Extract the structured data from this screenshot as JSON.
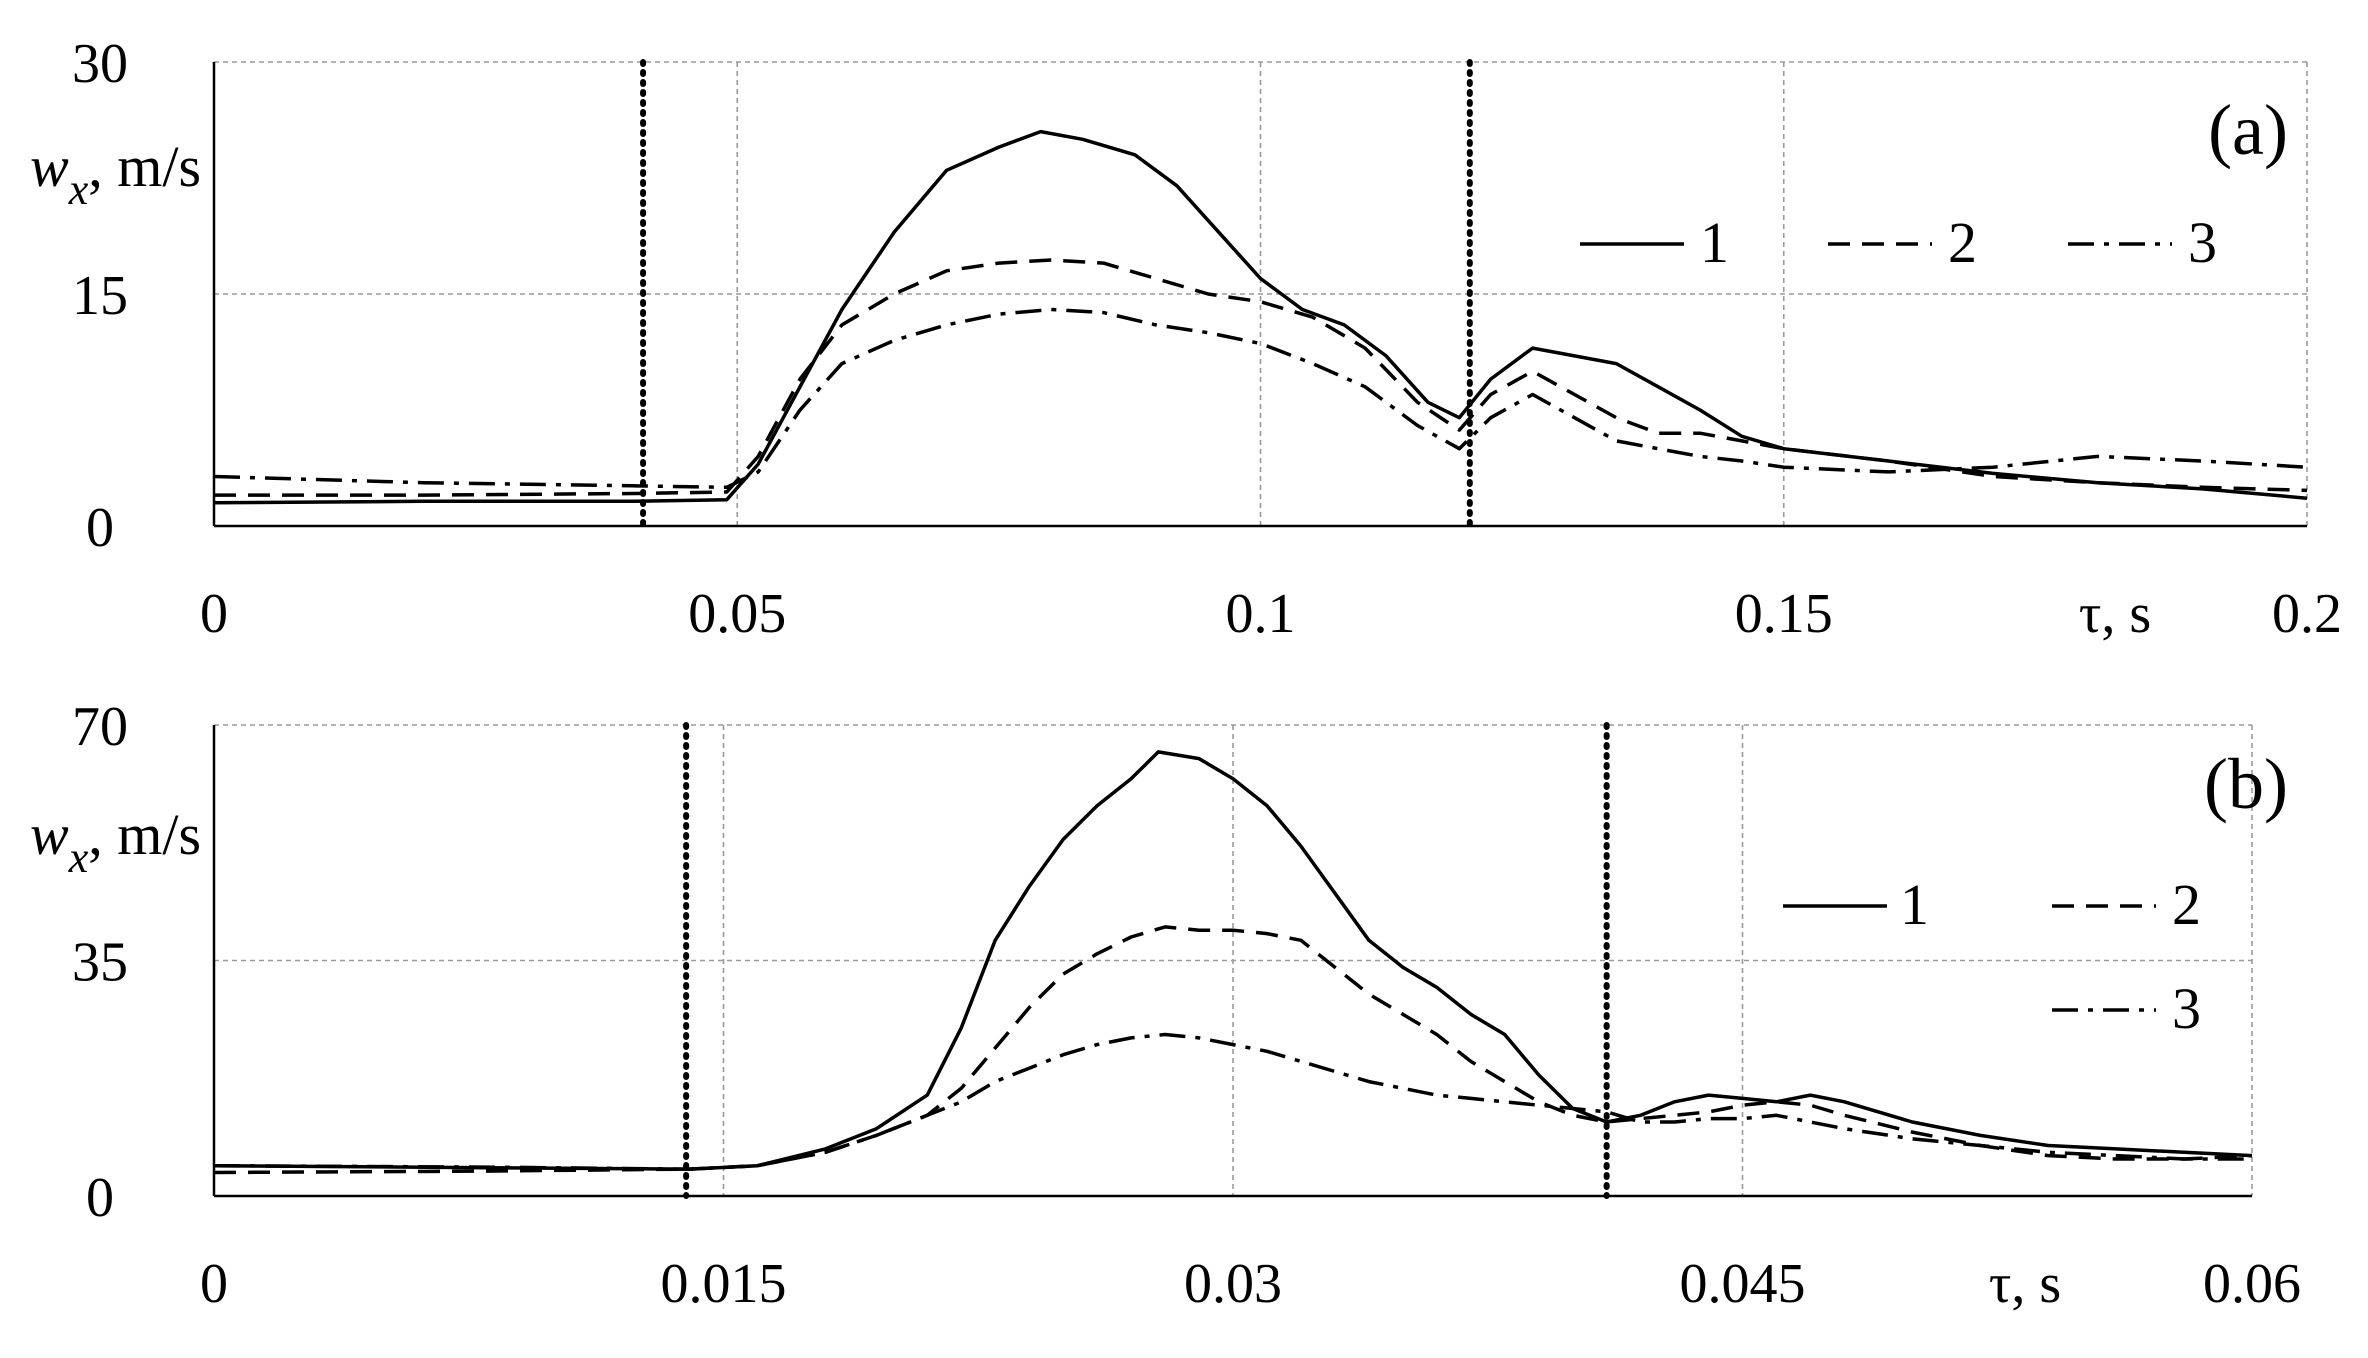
{
  "chart_data": [
    {
      "type": "line",
      "panel_label": "(a)",
      "ylabel_main": "w",
      "ylabel_sub": "x",
      "ylabel_rest": ", m/s",
      "xlabel": "τ, s",
      "xlim": [
        0,
        0.2
      ],
      "ylim": [
        0,
        30
      ],
      "x_ticks": [
        0,
        0.05,
        0.1,
        0.15,
        0.2
      ],
      "x_tick_labels": [
        "0",
        "0.05",
        "0.1",
        "0.15",
        "0.2"
      ],
      "y_ticks": [
        0,
        15,
        30
      ],
      "y_tick_labels": [
        "0",
        "15",
        "30"
      ],
      "grid": true,
      "legend_placement": "top-right",
      "vlines": [
        0.041,
        0.12
      ],
      "series": [
        {
          "name": "1",
          "style": "solid",
          "x": [
            0,
            0.02,
            0.04,
            0.049,
            0.052,
            0.056,
            0.06,
            0.065,
            0.07,
            0.075,
            0.079,
            0.083,
            0.088,
            0.092,
            0.096,
            0.1,
            0.104,
            0.108,
            0.112,
            0.116,
            0.119,
            0.122,
            0.126,
            0.13,
            0.134,
            0.138,
            0.142,
            0.146,
            0.15,
            0.16,
            0.17,
            0.18,
            0.19,
            0.2
          ],
          "y": [
            1.5,
            1.6,
            1.6,
            1.7,
            4,
            9,
            14,
            19,
            23,
            24.5,
            25.5,
            25,
            24,
            22,
            19,
            16,
            14,
            13,
            11,
            8,
            7,
            9.5,
            11.5,
            11,
            10.5,
            9,
            7.5,
            5.8,
            5,
            4.2,
            3.4,
            2.8,
            2.4,
            1.8
          ]
        },
        {
          "name": "2",
          "style": "dashed",
          "x": [
            0,
            0.02,
            0.04,
            0.049,
            0.052,
            0.056,
            0.06,
            0.065,
            0.07,
            0.075,
            0.08,
            0.085,
            0.09,
            0.095,
            0.1,
            0.105,
            0.11,
            0.115,
            0.119,
            0.122,
            0.126,
            0.13,
            0.134,
            0.138,
            0.142,
            0.146,
            0.15,
            0.16,
            0.17,
            0.18,
            0.19,
            0.2
          ],
          "y": [
            2,
            2,
            2.1,
            2.2,
            4.5,
            9.5,
            13,
            15,
            16.5,
            17,
            17.2,
            17,
            16,
            15,
            14.5,
            13.5,
            11.5,
            8,
            6.2,
            8.5,
            10,
            8.5,
            7,
            6,
            6,
            5.5,
            5,
            4.2,
            3.2,
            2.8,
            2.5,
            2.3
          ]
        },
        {
          "name": "3",
          "style": "dashdot",
          "x": [
            0,
            0.02,
            0.04,
            0.049,
            0.052,
            0.056,
            0.06,
            0.065,
            0.07,
            0.075,
            0.08,
            0.085,
            0.09,
            0.095,
            0.1,
            0.105,
            0.11,
            0.115,
            0.119,
            0.122,
            0.126,
            0.13,
            0.134,
            0.138,
            0.142,
            0.146,
            0.15,
            0.16,
            0.17,
            0.18,
            0.19,
            0.2
          ],
          "y": [
            3.2,
            2.8,
            2.6,
            2.5,
            3.5,
            7.5,
            10.5,
            12,
            13,
            13.7,
            14,
            13.8,
            13,
            12.5,
            11.8,
            10.5,
            9,
            6.5,
            5,
            7,
            8.5,
            7,
            5.5,
            5,
            4.5,
            4.2,
            3.8,
            3.5,
            3.8,
            4.5,
            4.2,
            3.8
          ]
        }
      ]
    },
    {
      "type": "line",
      "panel_label": "(b)",
      "ylabel_main": "w",
      "ylabel_sub": "x",
      "ylabel_rest": ", m/s",
      "xlabel": "τ, s",
      "xlim": [
        0,
        0.06
      ],
      "ylim": [
        0,
        70
      ],
      "x_ticks": [
        0,
        0.015,
        0.03,
        0.045,
        0.06
      ],
      "x_tick_labels": [
        "0",
        "0.015",
        "0.03",
        "0.045",
        "0.06"
      ],
      "y_ticks": [
        0,
        35,
        70
      ],
      "y_tick_labels": [
        "0",
        "35",
        "70"
      ],
      "grid": true,
      "legend_placement": "right",
      "vlines": [
        0.0139,
        0.041
      ],
      "series": [
        {
          "name": "1",
          "style": "solid",
          "x": [
            0,
            0.008,
            0.014,
            0.016,
            0.018,
            0.0195,
            0.021,
            0.022,
            0.023,
            0.024,
            0.025,
            0.026,
            0.027,
            0.0278,
            0.029,
            0.03,
            0.031,
            0.032,
            0.033,
            0.034,
            0.035,
            0.036,
            0.037,
            0.038,
            0.039,
            0.04,
            0.041,
            0.042,
            0.043,
            0.044,
            0.045,
            0.046,
            0.047,
            0.048,
            0.05,
            0.052,
            0.054,
            0.056,
            0.058,
            0.06
          ],
          "y": [
            4.5,
            4.2,
            4,
            4.5,
            7,
            10,
            15,
            25,
            38,
            46,
            53,
            58,
            62,
            66,
            65,
            62,
            58,
            52,
            45,
            38,
            34,
            31,
            27,
            24,
            18,
            13,
            11,
            12,
            14,
            15,
            14.5,
            14,
            15,
            14,
            11,
            9,
            7.5,
            7,
            6.5,
            6
          ]
        },
        {
          "name": "2",
          "style": "dashed",
          "x": [
            0,
            0.008,
            0.014,
            0.016,
            0.018,
            0.0195,
            0.021,
            0.022,
            0.023,
            0.024,
            0.025,
            0.026,
            0.027,
            0.028,
            0.029,
            0.03,
            0.031,
            0.032,
            0.033,
            0.034,
            0.035,
            0.036,
            0.037,
            0.038,
            0.039,
            0.04,
            0.041,
            0.042,
            0.043,
            0.044,
            0.045,
            0.046,
            0.047,
            0.048,
            0.05,
            0.052,
            0.054,
            0.056,
            0.058,
            0.06
          ],
          "y": [
            3.5,
            3.7,
            4,
            4.5,
            6.5,
            9,
            12,
            16,
            22,
            28,
            33,
            36,
            38.5,
            40,
            39.5,
            39.5,
            39,
            38,
            34,
            30,
            27,
            24,
            20,
            17,
            14,
            12,
            11,
            11.5,
            12,
            12.5,
            13.5,
            14,
            13.5,
            12,
            9.5,
            7.5,
            6,
            5.5,
            5.5,
            6
          ]
        },
        {
          "name": "3",
          "style": "dashdot",
          "x": [
            0,
            0.008,
            0.014,
            0.016,
            0.018,
            0.0195,
            0.021,
            0.022,
            0.023,
            0.024,
            0.025,
            0.026,
            0.027,
            0.028,
            0.029,
            0.03,
            0.031,
            0.032,
            0.033,
            0.034,
            0.035,
            0.036,
            0.037,
            0.038,
            0.039,
            0.04,
            0.041,
            0.042,
            0.043,
            0.044,
            0.045,
            0.046,
            0.047,
            0.048,
            0.05,
            0.052,
            0.054,
            0.056,
            0.058,
            0.06
          ],
          "y": [
            4.5,
            4.3,
            4,
            4.5,
            6.5,
            9,
            12,
            14,
            17,
            19,
            21,
            22.5,
            23.5,
            24,
            23.5,
            22.5,
            21.5,
            20,
            18.5,
            17,
            16,
            15,
            14.5,
            14,
            13.5,
            13,
            12.5,
            11,
            11,
            11.5,
            11.5,
            12,
            11,
            10,
            8.5,
            7.5,
            6.5,
            6,
            5.5,
            5.5
          ]
        }
      ]
    }
  ]
}
